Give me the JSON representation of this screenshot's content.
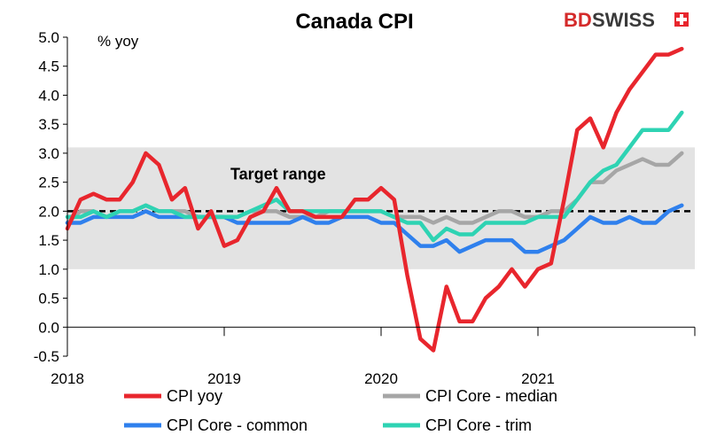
{
  "chart_data": {
    "type": "line",
    "title": "Canada CPI",
    "ylabel": "% yoy",
    "ylim": [
      -0.5,
      5.0
    ],
    "yticks": [
      "5.0",
      "4.5",
      "4.0",
      "3.5",
      "3.0",
      "2.5",
      "2.0",
      "1.5",
      "1.0",
      "0.5",
      "0.0",
      "-0.5"
    ],
    "xticks": [
      "2018",
      "2019",
      "2020",
      "2021"
    ],
    "x_start": "2018-01",
    "target_range": {
      "label": "Target range",
      "low": 1.0,
      "high": 3.1,
      "midpoint": 2.0
    },
    "series": [
      {
        "name": "CPI yoy",
        "color": "#e8262d",
        "values": [
          1.7,
          2.2,
          2.3,
          2.2,
          2.2,
          2.5,
          3.0,
          2.8,
          2.2,
          2.4,
          1.7,
          2.0,
          1.4,
          1.5,
          1.9,
          2.0,
          2.4,
          2.0,
          2.0,
          1.9,
          1.9,
          1.9,
          2.2,
          2.2,
          2.4,
          2.2,
          0.9,
          -0.2,
          -0.4,
          0.7,
          0.1,
          0.1,
          0.5,
          0.7,
          1.0,
          0.7,
          1.0,
          1.1,
          2.2,
          3.4,
          3.6,
          3.1,
          3.7,
          4.1,
          4.4,
          4.7,
          4.7,
          4.8
        ]
      },
      {
        "name": "CPI Core - median",
        "color": "#a6a6a6",
        "values": [
          1.8,
          2.0,
          2.0,
          1.9,
          2.0,
          2.0,
          2.1,
          2.0,
          2.0,
          2.0,
          1.9,
          1.9,
          1.9,
          1.9,
          2.0,
          2.0,
          2.0,
          1.9,
          1.9,
          1.9,
          2.0,
          2.0,
          2.0,
          2.0,
          2.0,
          1.9,
          1.9,
          1.9,
          1.8,
          1.9,
          1.8,
          1.8,
          1.9,
          2.0,
          2.0,
          1.9,
          1.9,
          2.0,
          2.0,
          2.2,
          2.5,
          2.5,
          2.7,
          2.8,
          2.9,
          2.8,
          2.8,
          3.0
        ]
      },
      {
        "name": "CPI Core - common",
        "color": "#2f80ed",
        "values": [
          1.8,
          1.8,
          1.9,
          1.9,
          1.9,
          1.9,
          2.0,
          1.9,
          1.9,
          1.9,
          1.9,
          1.9,
          1.9,
          1.8,
          1.8,
          1.8,
          1.8,
          1.8,
          1.9,
          1.8,
          1.8,
          1.9,
          1.9,
          1.9,
          1.8,
          1.8,
          1.6,
          1.4,
          1.4,
          1.5,
          1.3,
          1.4,
          1.5,
          1.5,
          1.5,
          1.3,
          1.3,
          1.4,
          1.5,
          1.7,
          1.9,
          1.8,
          1.8,
          1.9,
          1.8,
          1.8,
          2.0,
          2.1
        ]
      },
      {
        "name": "CPI Core - trim",
        "color": "#2ed3b3",
        "values": [
          1.9,
          1.9,
          2.0,
          1.9,
          2.0,
          2.0,
          2.1,
          2.0,
          2.0,
          1.9,
          1.9,
          1.9,
          1.9,
          1.9,
          2.0,
          2.1,
          2.2,
          2.0,
          2.0,
          2.0,
          2.0,
          2.0,
          2.0,
          2.0,
          2.0,
          1.9,
          1.8,
          1.8,
          1.5,
          1.7,
          1.6,
          1.6,
          1.8,
          1.8,
          1.8,
          1.8,
          1.9,
          1.9,
          1.9,
          2.2,
          2.5,
          2.7,
          2.8,
          3.1,
          3.4,
          3.4,
          3.4,
          3.7
        ]
      }
    ]
  },
  "logo": {
    "text_bd": "BD",
    "text_swiss": "SWISS"
  }
}
